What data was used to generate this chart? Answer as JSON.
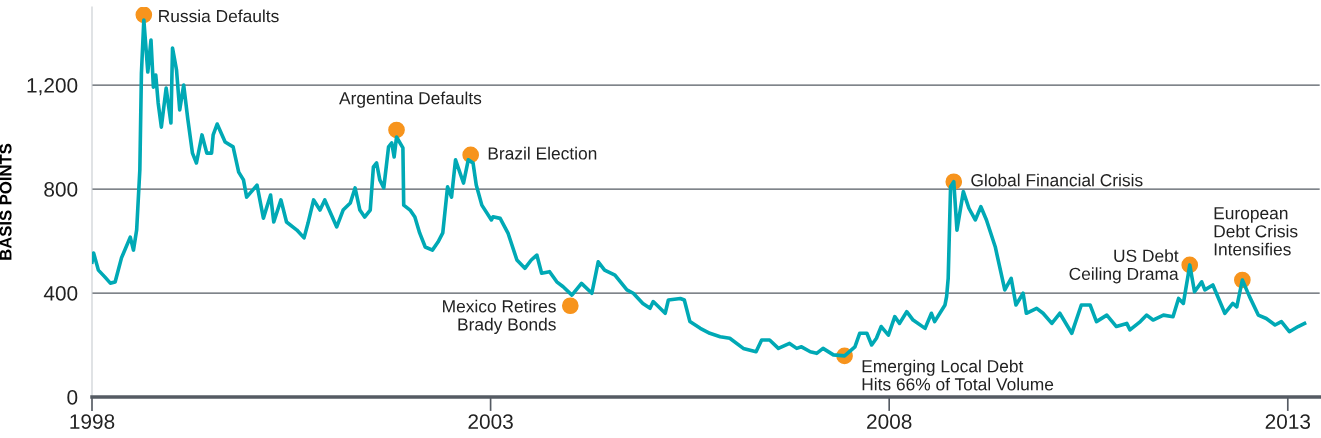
{
  "chart_data": {
    "type": "line",
    "ylabel": "BASIS POINTS",
    "xlim": [
      1998,
      2013.4
    ],
    "xticks": [
      1998,
      2003,
      2008,
      2013
    ],
    "ylim": [
      0,
      1500
    ],
    "yticks": [
      0,
      400,
      800,
      {
        "value": 1200,
        "label": "1,200"
      }
    ],
    "grid": "y",
    "marker": "none",
    "line_style": "solid",
    "series": [
      {
        "color": "#00a9b5",
        "x": [
          1998.0,
          1998.02,
          1998.08,
          1998.16,
          1998.23,
          1998.29,
          1998.37,
          1998.48,
          1998.52,
          1998.56,
          1998.6,
          1998.62,
          1998.65,
          1998.7,
          1998.74,
          1998.77,
          1998.8,
          1998.83,
          1998.87,
          1998.93,
          1998.99,
          1999.01,
          1999.06,
          1999.1,
          1999.15,
          1999.2,
          1999.26,
          1999.31,
          1999.38,
          1999.44,
          1999.5,
          1999.52,
          1999.57,
          1999.67,
          1999.77,
          1999.84,
          1999.9,
          1999.94,
          2000.07,
          2000.15,
          2000.24,
          2000.28,
          2000.37,
          2000.44,
          2000.57,
          2000.66,
          2000.71,
          2000.78,
          2000.86,
          2000.92,
          2001.07,
          2001.15,
          2001.24,
          2001.3,
          2001.36,
          2001.42,
          2001.49,
          2001.53,
          2001.57,
          2001.61,
          2001.66,
          2001.72,
          2001.76,
          2001.79,
          2001.82,
          2001.9,
          2001.91,
          2001.99,
          2002.05,
          2002.11,
          2002.18,
          2002.27,
          2002.34,
          2002.4,
          2002.46,
          2002.51,
          2002.56,
          2002.66,
          2002.72,
          2002.78,
          2002.82,
          2002.89,
          2003.01,
          2003.03,
          2003.12,
          2003.22,
          2003.33,
          2003.43,
          2003.51,
          2003.58,
          2003.64,
          2003.74,
          2003.83,
          2003.91,
          2004.02,
          2004.14,
          2004.27,
          2004.35,
          2004.43,
          2004.56,
          2004.71,
          2004.79,
          2004.91,
          2005.0,
          2005.04,
          2005.19,
          2005.23,
          2005.38,
          2005.43,
          2005.5,
          2005.63,
          2005.75,
          2005.88,
          2006.0,
          2006.17,
          2006.33,
          2006.4,
          2006.5,
          2006.61,
          2006.75,
          2006.84,
          2006.9,
          2007.01,
          2007.09,
          2007.17,
          2007.3,
          2007.44,
          2007.57,
          2007.63,
          2007.72,
          2007.78,
          2007.84,
          2007.9,
          2007.99,
          2008.07,
          2008.13,
          2008.22,
          2008.3,
          2008.45,
          2008.53,
          2008.57,
          2008.7,
          2008.72,
          2008.74,
          2008.77,
          2008.81,
          2008.85,
          2008.93,
          2009.0,
          2009.08,
          2009.15,
          2009.22,
          2009.33,
          2009.45,
          2009.53,
          2009.59,
          2009.68,
          2009.72,
          2009.85,
          2009.93,
          2010.04,
          2010.14,
          2010.29,
          2010.41,
          2010.52,
          2010.6,
          2010.73,
          2010.85,
          2010.98,
          2011.02,
          2011.15,
          2011.23,
          2011.31,
          2011.44,
          2011.56,
          2011.63,
          2011.69,
          2011.75,
          2011.77,
          2011.83,
          2011.92,
          2011.96,
          2012.06,
          2012.21,
          2012.31,
          2012.36,
          2012.43,
          2012.52,
          2012.63,
          2012.73,
          2012.84,
          2012.92,
          2013.02,
          2013.13,
          2013.21
        ],
        "values": [
          519,
          554,
          488,
          462,
          438,
          442,
          535,
          615,
          565,
          642,
          873,
          1246,
          1450,
          1250,
          1373,
          1192,
          1238,
          1131,
          1038,
          1188,
          1054,
          1342,
          1258,
          1104,
          1200,
          1073,
          938,
          900,
          1008,
          938,
          938,
          1008,
          1050,
          981,
          962,
          865,
          835,
          769,
          815,
          688,
          777,
          673,
          758,
          673,
          642,
          612,
          669,
          758,
          719,
          758,
          654,
          719,
          746,
          804,
          719,
          692,
          719,
          885,
          900,
          835,
          804,
          962,
          977,
          923,
          1000,
          958,
          738,
          719,
          692,
          631,
          577,
          565,
          596,
          631,
          808,
          769,
          912,
          823,
          912,
          900,
          815,
          738,
          681,
          693,
          687,
          629,
          527,
          495,
          527,
          546,
          476,
          482,
          443,
          424,
          392,
          437,
          399,
          520,
          488,
          469,
          412,
          399,
          360,
          341,
          367,
          322,
          373,
          379,
          373,
          290,
          264,
          245,
          232,
          226,
          187,
          174,
          219,
          219,
          187,
          206,
          187,
          193,
          174,
          168,
          187,
          162,
          158,
          193,
          245,
          245,
          200,
          226,
          271,
          238,
          309,
          283,
          328,
          296,
          264,
          322,
          290,
          354,
          386,
          456,
          809,
          828,
          642,
          790,
          726,
          681,
          732,
          681,
          578,
          412,
          456,
          354,
          399,
          322,
          341,
          322,
          283,
          322,
          245,
          354,
          354,
          290,
          315,
          271,
          283,
          258,
          290,
          315,
          296,
          315,
          309,
          379,
          360,
          469,
          508,
          405,
          443,
          412,
          431,
          322,
          360,
          347,
          450,
          386,
          315,
          302,
          277,
          290,
          251,
          271,
          283
        ]
      }
    ],
    "annotations": [
      {
        "text": "Russia Defaults",
        "x": 1998.65,
        "y": 1470
      },
      {
        "text": "Argentina Defaults",
        "x": 2001.82,
        "y": 1027
      },
      {
        "text": "Brazil Election",
        "x": 2002.75,
        "y": 931
      },
      {
        "text": "Mexico Retires\nBrady Bonds",
        "x": 2004.0,
        "y": 351
      },
      {
        "text": "Emerging Local Debt\nHits 66% of Total Volume",
        "x": 2007.44,
        "y": 158
      },
      {
        "text": "Global Financial Crisis",
        "x": 2008.81,
        "y": 828
      },
      {
        "text": "US Debt\nCeiling Drama",
        "x": 2011.77,
        "y": 508
      },
      {
        "text": "European\nDebt Crisis\nIntensifies",
        "x": 2012.43,
        "y": 450
      }
    ]
  }
}
